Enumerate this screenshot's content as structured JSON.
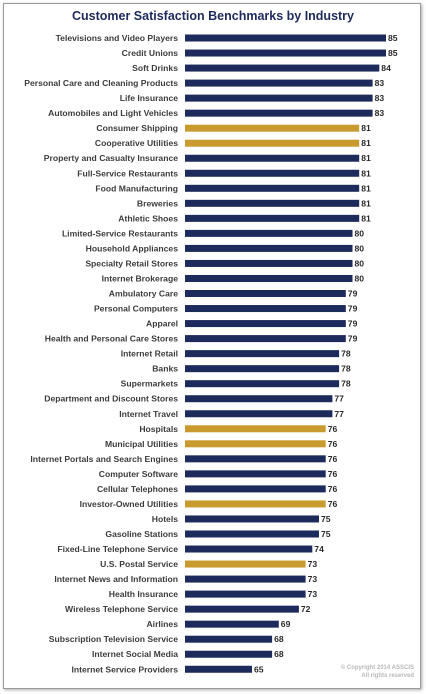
{
  "chart_data": {
    "type": "bar",
    "orientation": "horizontal",
    "title": "Customer Satisfaction Benchmarks by Industry",
    "categories": [
      "Televisions and Video Players",
      "Credit Unions",
      "Soft Drinks",
      "Personal Care and Cleaning Products",
      "Life Insurance",
      "Automobiles and Light Vehicles",
      "Consumer Shipping",
      "Cooperative Utilities",
      "Property and Casualty Insurance",
      "Full-Service Restaurants",
      "Food Manufacturing",
      "Breweries",
      "Athletic Shoes",
      "Limited-Service Restaurants",
      "Household Appliances",
      "Specialty Retail Stores",
      "Internet Brokerage",
      "Ambulatory Care",
      "Personal Computers",
      "Apparel",
      "Health and Personal Care Stores",
      "Internet Retail",
      "Banks",
      "Supermarkets",
      "Department and Discount Stores",
      "Internet Travel",
      "Hospitals",
      "Municipal Utilities",
      "Internet Portals and Search Engines",
      "Computer Software",
      "Cellular Telephones",
      "Investor-Owned Utilities",
      "Hotels",
      "Gasoline Stations",
      "Fixed-Line Telephone Service",
      "U.S. Postal Service",
      "Internet News and Information",
      "Health Insurance",
      "Wireless Telephone Service",
      "Airlines",
      "Subscription Television Service",
      "Internet Social Media",
      "Internet Service Providers"
    ],
    "values": [
      85,
      85,
      84,
      83,
      83,
      83,
      81,
      81,
      81,
      81,
      81,
      81,
      81,
      80,
      80,
      80,
      80,
      79,
      79,
      79,
      79,
      78,
      78,
      78,
      77,
      77,
      76,
      76,
      76,
      76,
      76,
      76,
      75,
      75,
      74,
      73,
      73,
      73,
      72,
      69,
      68,
      68,
      65
    ],
    "highlight": [
      "Consumer Shipping",
      "Cooperative Utilities",
      "Hospitals",
      "Municipal Utilities",
      "Investor-Owned Utilities",
      "U.S. Postal Service"
    ],
    "colors": {
      "default": "#1d2a5c",
      "highlight": "#c99a2e"
    },
    "xlim": [
      0,
      85
    ],
    "grid": false,
    "legend": "none"
  },
  "copyright": {
    "line1": "© Copyright 2014 ASSCIS",
    "line2": "All rights reserved"
  }
}
